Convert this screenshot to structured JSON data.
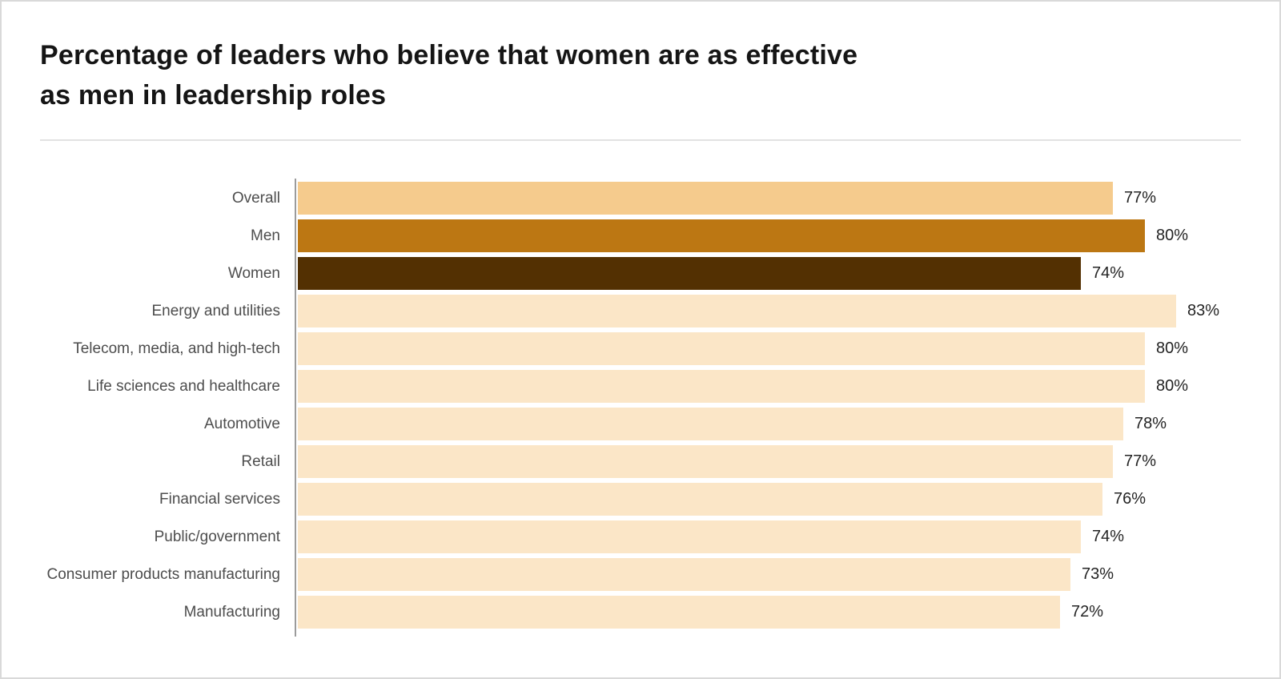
{
  "page": {
    "title": "Percentage of leaders who believe that women are as effective\nas men in leadership roles"
  },
  "chart_data": {
    "type": "bar",
    "orientation": "horizontal",
    "title": "Percentage of leaders who believe that women are as effective as men in leadership roles",
    "xlim": [
      0,
      100
    ],
    "value_suffix": "%",
    "grid": false,
    "legend": false,
    "value_labels_position": "outside-end",
    "colors": {
      "overall": "#F5CB8D",
      "men": "#BC7713",
      "women": "#533002",
      "industry": "#FBE6C7",
      "axis": "#9b9b9b"
    },
    "categories": [
      "Overall",
      "Men",
      "Women",
      "Energy and utilities",
      "Telecom, media, and high-tech",
      "Life sciences and healthcare",
      "Automotive",
      "Retail",
      "Financial services",
      "Public/government",
      "Consumer products manufacturing",
      "Manufacturing"
    ],
    "values": [
      77,
      80,
      74,
      83,
      80,
      80,
      78,
      77,
      76,
      74,
      73,
      72
    ],
    "bars": [
      {
        "label": "Overall",
        "value": 77,
        "group": "overall",
        "color": "#F5CB8D"
      },
      {
        "label": "Men",
        "value": 80,
        "group": "men",
        "color": "#BC7713"
      },
      {
        "label": "Women",
        "value": 74,
        "group": "women",
        "color": "#533002"
      },
      {
        "label": "Energy and utilities",
        "value": 83,
        "group": "industry",
        "color": "#FBE6C7"
      },
      {
        "label": "Telecom, media, and high-tech",
        "value": 80,
        "group": "industry",
        "color": "#FBE6C7"
      },
      {
        "label": "Life sciences and healthcare",
        "value": 80,
        "group": "industry",
        "color": "#FBE6C7"
      },
      {
        "label": "Automotive",
        "value": 78,
        "group": "industry",
        "color": "#FBE6C7"
      },
      {
        "label": "Retail",
        "value": 77,
        "group": "industry",
        "color": "#FBE6C7"
      },
      {
        "label": "Financial services",
        "value": 76,
        "group": "industry",
        "color": "#FBE6C7"
      },
      {
        "label": "Public/government",
        "value": 74,
        "group": "industry",
        "color": "#FBE6C7"
      },
      {
        "label": "Consumer products manufacturing",
        "value": 73,
        "group": "industry",
        "color": "#FBE6C7"
      },
      {
        "label": "Manufacturing",
        "value": 72,
        "group": "industry",
        "color": "#FBE6C7"
      }
    ]
  }
}
